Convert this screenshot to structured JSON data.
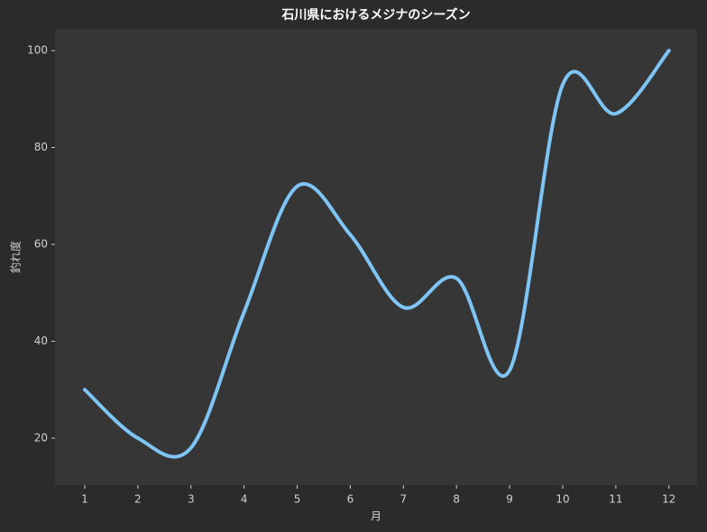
{
  "chart_data": {
    "type": "line",
    "title": "石川県におけるメジナのシーズン",
    "x_label": "月",
    "y_label": "釣れ度",
    "x": [
      1,
      2,
      3,
      4,
      5,
      6,
      7,
      8,
      9,
      10,
      11,
      12
    ],
    "series": [
      {
        "name": "釣れ度",
        "color": "#7ec4f5",
        "values": [
          30,
          20,
          18,
          46,
          72,
          62,
          47,
          53,
          34,
          93,
          87,
          100
        ]
      }
    ],
    "xlim": [
      0.44,
      12.53
    ],
    "ylim": [
      10.3,
      104.5
    ],
    "xticks": [
      1,
      2,
      3,
      4,
      5,
      6,
      7,
      8,
      9,
      10,
      11,
      12
    ],
    "yticks": [
      20,
      40,
      60,
      80,
      100
    ],
    "grid": false,
    "legend": false
  }
}
